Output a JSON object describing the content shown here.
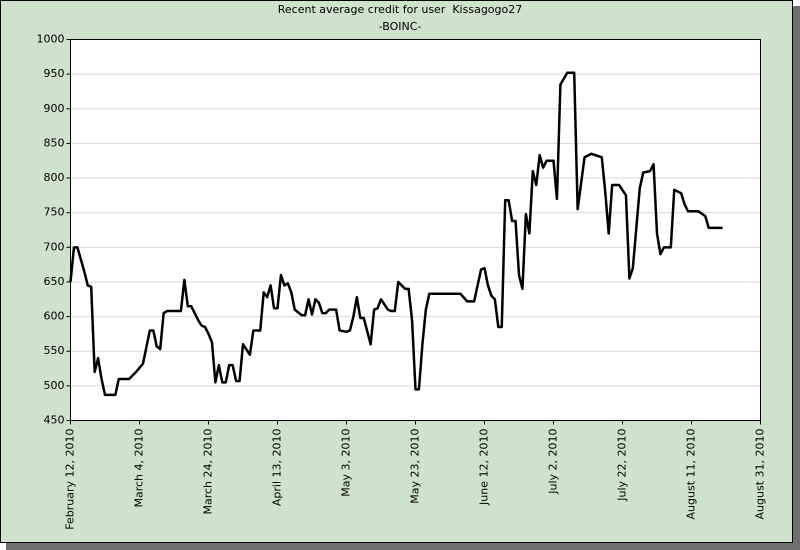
{
  "chart_data": {
    "type": "line",
    "title": "Recent average credit for user  Kissagogo27",
    "subtitle": "-BOINC-",
    "color": "#000000",
    "grid": true,
    "x": [
      "2010-02-12",
      "2010-02-13",
      "2010-02-14",
      "2010-02-16",
      "2010-02-17",
      "2010-02-18",
      "2010-02-19",
      "2010-02-20",
      "2010-02-21",
      "2010-02-22",
      "2010-02-25",
      "2010-02-26",
      "2010-03-01",
      "2010-03-03",
      "2010-03-05",
      "2010-03-07",
      "2010-03-08",
      "2010-03-09",
      "2010-03-10",
      "2010-03-11",
      "2010-03-12",
      "2010-03-16",
      "2010-03-17",
      "2010-03-18",
      "2010-03-19",
      "2010-03-21",
      "2010-03-22",
      "2010-03-23",
      "2010-03-24",
      "2010-03-25",
      "2010-03-26",
      "2010-03-27",
      "2010-03-28",
      "2010-03-29",
      "2010-03-30",
      "2010-03-31",
      "2010-04-01",
      "2010-04-02",
      "2010-04-03",
      "2010-04-05",
      "2010-04-06",
      "2010-04-08",
      "2010-04-09",
      "2010-04-10",
      "2010-04-11",
      "2010-04-12",
      "2010-04-13",
      "2010-04-14",
      "2010-04-15",
      "2010-04-16",
      "2010-04-17",
      "2010-04-18",
      "2010-04-20",
      "2010-04-21",
      "2010-04-22",
      "2010-04-23",
      "2010-04-24",
      "2010-04-25",
      "2010-04-26",
      "2010-04-27",
      "2010-04-28",
      "2010-04-30",
      "2010-05-01",
      "2010-05-03",
      "2010-05-04",
      "2010-05-05",
      "2010-05-06",
      "2010-05-07",
      "2010-05-08",
      "2010-05-10",
      "2010-05-11",
      "2010-05-12",
      "2010-05-13",
      "2010-05-15",
      "2010-05-16",
      "2010-05-17",
      "2010-05-18",
      "2010-05-20",
      "2010-05-21",
      "2010-05-22",
      "2010-05-23",
      "2010-05-24",
      "2010-05-25",
      "2010-05-26",
      "2010-05-27",
      "2010-06-05",
      "2010-06-07",
      "2010-06-09",
      "2010-06-11",
      "2010-06-12",
      "2010-06-13",
      "2010-06-14",
      "2010-06-15",
      "2010-06-16",
      "2010-06-17",
      "2010-06-18",
      "2010-06-19",
      "2010-06-20",
      "2010-06-21",
      "2010-06-22",
      "2010-06-23",
      "2010-06-24",
      "2010-06-25",
      "2010-06-26",
      "2010-06-27",
      "2010-06-28",
      "2010-06-29",
      "2010-06-30",
      "2010-07-02",
      "2010-07-03",
      "2010-07-04",
      "2010-07-06",
      "2010-07-08",
      "2010-07-09",
      "2010-07-11",
      "2010-07-13",
      "2010-07-16",
      "2010-07-17",
      "2010-07-18",
      "2010-07-19",
      "2010-07-21",
      "2010-07-23",
      "2010-07-24",
      "2010-07-25",
      "2010-07-27",
      "2010-07-28",
      "2010-07-30",
      "2010-07-31",
      "2010-08-01",
      "2010-08-02",
      "2010-08-03",
      "2010-08-05",
      "2010-08-06",
      "2010-08-08",
      "2010-08-09",
      "2010-08-10",
      "2010-08-13",
      "2010-08-15",
      "2010-08-16",
      "2010-08-20"
    ],
    "values": [
      650,
      700,
      700,
      665,
      645,
      643,
      520,
      540,
      510,
      487,
      487,
      510,
      510,
      520,
      532,
      580,
      580,
      557,
      553,
      605,
      608,
      608,
      653,
      615,
      615,
      595,
      587,
      585,
      575,
      563,
      505,
      530,
      505,
      505,
      530,
      530,
      507,
      507,
      560,
      545,
      580,
      580,
      635,
      628,
      645,
      612,
      612,
      660,
      645,
      648,
      635,
      610,
      602,
      602,
      625,
      603,
      625,
      620,
      605,
      605,
      610,
      610,
      580,
      578,
      580,
      600,
      628,
      598,
      598,
      560,
      610,
      612,
      625,
      610,
      608,
      608,
      650,
      640,
      640,
      595,
      495,
      495,
      560,
      610,
      633,
      633,
      622,
      622,
      668,
      670,
      645,
      630,
      625,
      585,
      585,
      768,
      768,
      738,
      738,
      660,
      640,
      748,
      720,
      810,
      790,
      833,
      815,
      825,
      825,
      770,
      935,
      952,
      952,
      755,
      830,
      835,
      830,
      780,
      720,
      790,
      790,
      775,
      655,
      670,
      785,
      808,
      810,
      820,
      720,
      690,
      700,
      700,
      783,
      778,
      762,
      752,
      752,
      745,
      728,
      728
    ],
    "xlim": [
      "2010-02-12",
      "2010-08-31"
    ],
    "xticks": [
      {
        "value": "2010-02-12",
        "label": "February 12, 2010"
      },
      {
        "value": "2010-03-04",
        "label": "March 4, 2010"
      },
      {
        "value": "2010-03-24",
        "label": "March 24, 2010"
      },
      {
        "value": "2010-04-13",
        "label": "April 13, 2010"
      },
      {
        "value": "2010-05-03",
        "label": "May 3, 2010"
      },
      {
        "value": "2010-05-23",
        "label": "May 23, 2010"
      },
      {
        "value": "2010-06-12",
        "label": "June 12, 2010"
      },
      {
        "value": "2010-07-02",
        "label": "July 2, 2010"
      },
      {
        "value": "2010-07-22",
        "label": "July 22, 2010"
      },
      {
        "value": "2010-08-11",
        "label": "August 11, 2010"
      },
      {
        "value": "2010-08-31",
        "label": "August 31, 2010"
      }
    ],
    "ylim": [
      450,
      1000
    ],
    "yticks": [
      450,
      500,
      550,
      600,
      650,
      700,
      750,
      800,
      850,
      900,
      950,
      1000
    ]
  }
}
